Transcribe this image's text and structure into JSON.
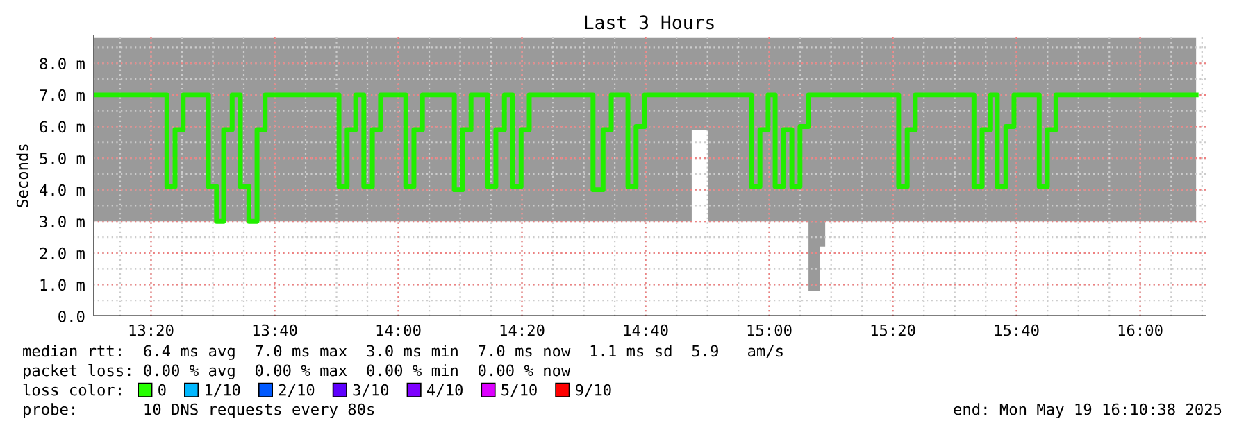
{
  "chart_data": {
    "type": "step",
    "title": "Last 3 Hours",
    "ylabel": "Seconds",
    "x": [
      13.177,
      13.376,
      13.398,
      13.42,
      13.488,
      13.51,
      13.529,
      13.552,
      13.574,
      13.597,
      13.619,
      13.641,
      13.84,
      13.862,
      13.885,
      13.907,
      13.93,
      13.952,
      14.02,
      14.042,
      14.065,
      14.151,
      14.173,
      14.196,
      14.241,
      14.263,
      14.286,
      14.308,
      14.331,
      14.353,
      14.525,
      14.552,
      14.574,
      14.619,
      14.641,
      14.664,
      14.791,
      14.836,
      14.952,
      14.975,
      14.997,
      15.016,
      15.038,
      15.061,
      15.083,
      15.106,
      15.136,
      15.151,
      15.349,
      15.372,
      15.394,
      15.552,
      15.574,
      15.597,
      15.615,
      15.638,
      15.66,
      15.728,
      15.75,
      15.773,
      16.151
    ],
    "series": [
      {
        "color": "#22ee00",
        "values": [
          7.0,
          4.1,
          5.9,
          7.0,
          4.1,
          3.0,
          5.9,
          7.0,
          4.1,
          3.0,
          5.9,
          7.0,
          4.1,
          5.9,
          7.0,
          4.1,
          5.9,
          7.0,
          4.1,
          5.9,
          7.0,
          4.0,
          5.9,
          7.0,
          4.1,
          5.9,
          7.0,
          4.1,
          5.9,
          7.0,
          4.0,
          5.9,
          7.0,
          4.1,
          6.0,
          7.0,
          7.0,
          7.0,
          4.1,
          5.9,
          7.0,
          4.1,
          5.9,
          4.1,
          6.0,
          7.0,
          7.0,
          7.0,
          4.1,
          5.9,
          7.0,
          4.1,
          5.9,
          7.0,
          4.1,
          6.0,
          7.0,
          4.1,
          5.9,
          7.0,
          7.0
        ],
        "lower": [
          3.0,
          3.0,
          3.0,
          3.0,
          3.0,
          3.0,
          3.0,
          3.0,
          3.0,
          3.0,
          3.0,
          3.0,
          3.0,
          3.0,
          3.0,
          3.0,
          3.0,
          3.0,
          3.0,
          3.0,
          3.0,
          3.0,
          3.0,
          3.0,
          3.0,
          3.0,
          3.0,
          3.0,
          3.0,
          3.0,
          3.0,
          3.0,
          3.0,
          3.0,
          3.0,
          3.0,
          5.9,
          3.0,
          3.0,
          3.0,
          3.0,
          3.0,
          3.0,
          3.0,
          3.0,
          0.8,
          2.2,
          3.0,
          3.0,
          3.0,
          3.0,
          3.0,
          3.0,
          3.0,
          3.0,
          3.0,
          3.0,
          3.0,
          3.0,
          3.0,
          3.0
        ],
        "upper": [
          8.8,
          8.8,
          8.8,
          8.8,
          8.8,
          8.8,
          8.8,
          8.8,
          8.8,
          8.8,
          8.8,
          8.8,
          8.8,
          8.8,
          8.8,
          8.8,
          8.8,
          8.8,
          8.8,
          8.8,
          8.8,
          8.8,
          8.8,
          8.8,
          8.8,
          8.8,
          8.8,
          8.8,
          8.8,
          8.8,
          8.8,
          8.8,
          8.8,
          8.8,
          8.8,
          8.8,
          8.8,
          8.8,
          8.8,
          8.8,
          8.8,
          8.8,
          8.8,
          8.8,
          8.8,
          8.8,
          8.8,
          8.8,
          8.8,
          8.8,
          8.8,
          8.8,
          8.8,
          8.8,
          8.8,
          8.8,
          8.8,
          8.8,
          8.8,
          8.8,
          8.8
        ]
      },
      {
        "name": "0",
        "color": "#26ff00",
        "values": [
          null,
          null,
          null,
          null,
          null,
          null,
          null,
          null,
          null,
          null,
          null,
          null,
          null,
          null,
          null,
          null,
          null,
          null,
          null,
          null,
          null,
          null,
          null,
          null,
          null,
          null,
          null,
          null,
          null,
          null,
          null,
          null,
          null,
          null,
          null,
          null,
          null,
          null,
          null,
          null,
          null,
          null,
          null,
          null,
          null,
          null,
          null,
          null,
          null,
          null,
          null,
          null,
          null,
          null,
          null,
          null,
          null,
          null,
          null,
          null,
          null
        ]
      },
      {
        "name": "1/10",
        "color": "#00b8ff",
        "values": [
          null,
          null,
          null,
          null,
          null,
          null,
          null,
          null,
          null,
          null,
          null,
          null,
          null,
          null,
          null,
          null,
          null,
          null,
          null,
          null,
          null,
          null,
          null,
          null,
          null,
          null,
          null,
          null,
          null,
          null,
          null,
          null,
          null,
          null,
          null,
          null,
          null,
          null,
          null,
          null,
          null,
          null,
          null,
          null,
          null,
          null,
          null,
          null,
          null,
          null,
          null,
          null,
          null,
          null,
          null,
          null,
          null,
          null,
          null,
          null,
          null
        ]
      },
      {
        "name": "2/10",
        "color": "#0059ff",
        "values": [
          null,
          null,
          null,
          null,
          null,
          null,
          null,
          null,
          null,
          null,
          null,
          null,
          null,
          null,
          null,
          null,
          null,
          null,
          null,
          null,
          null,
          null,
          null,
          null,
          null,
          null,
          null,
          null,
          null,
          null,
          null,
          null,
          null,
          null,
          null,
          null,
          null,
          null,
          null,
          null,
          null,
          null,
          null,
          null,
          null,
          null,
          null,
          null,
          null,
          null,
          null,
          null,
          null,
          null,
          null,
          null,
          null,
          null,
          null,
          null,
          null
        ]
      },
      {
        "name": "3/10",
        "color": "#5e00ff",
        "values": [
          null,
          null,
          null,
          null,
          null,
          null,
          null,
          null,
          null,
          null,
          null,
          null,
          null,
          null,
          null,
          null,
          null,
          null,
          null,
          null,
          null,
          null,
          null,
          null,
          null,
          null,
          null,
          null,
          null,
          null,
          null,
          null,
          null,
          null,
          null,
          null,
          null,
          null,
          null,
          null,
          null,
          null,
          null,
          null,
          null,
          null,
          null,
          null,
          null,
          null,
          null,
          null,
          null,
          null,
          null,
          null,
          null,
          null,
          null,
          null,
          null
        ]
      },
      {
        "name": "4/10",
        "color": "#7e00ff",
        "values": [
          null,
          null,
          null,
          null,
          null,
          null,
          null,
          null,
          null,
          null,
          null,
          null,
          null,
          null,
          null,
          null,
          null,
          null,
          null,
          null,
          null,
          null,
          null,
          null,
          null,
          null,
          null,
          null,
          null,
          null,
          null,
          null,
          null,
          null,
          null,
          null,
          null,
          null,
          null,
          null,
          null,
          null,
          null,
          null,
          null,
          null,
          null,
          null,
          null,
          null,
          null,
          null,
          null,
          null,
          null,
          null,
          null,
          null,
          null,
          null,
          null
        ]
      },
      {
        "name": "5/10",
        "color": "#dd00ff",
        "values": [
          null,
          null,
          null,
          null,
          null,
          null,
          null,
          null,
          null,
          null,
          null,
          null,
          null,
          null,
          null,
          null,
          null,
          null,
          null,
          null,
          null,
          null,
          null,
          null,
          null,
          null,
          null,
          null,
          null,
          null,
          null,
          null,
          null,
          null,
          null,
          null,
          null,
          null,
          null,
          null,
          null,
          null,
          null,
          null,
          null,
          null,
          null,
          null,
          null,
          null,
          null,
          null,
          null,
          null,
          null,
          null,
          null,
          null,
          null,
          null,
          null
        ]
      },
      {
        "name": "9/10",
        "color": "#ff0000",
        "values": [
          null,
          null,
          null,
          null,
          null,
          null,
          null,
          null,
          null,
          null,
          null,
          null,
          null,
          null,
          null,
          null,
          null,
          null,
          null,
          null,
          null,
          null,
          null,
          null,
          null,
          null,
          null,
          null,
          null,
          null,
          null,
          null,
          null,
          null,
          null,
          null,
          null,
          null,
          null,
          null,
          null,
          null,
          null,
          null,
          null,
          null,
          null,
          null,
          null,
          null,
          null,
          null,
          null,
          null,
          null,
          null,
          null,
          null,
          null,
          null,
          null
        ]
      }
    ],
    "xlim": [
      13.177,
      16.177
    ],
    "xticks": [
      {
        "value": 13.3333,
        "label": "13:20"
      },
      {
        "value": 13.6667,
        "label": "13:40"
      },
      {
        "value": 14.0,
        "label": "14:00"
      },
      {
        "value": 14.3333,
        "label": "14:20"
      },
      {
        "value": 14.6667,
        "label": "14:40"
      },
      {
        "value": 15.0,
        "label": "15:00"
      },
      {
        "value": 15.3333,
        "label": "15:20"
      },
      {
        "value": 15.6667,
        "label": "15:40"
      },
      {
        "value": 16.0,
        "label": "16:00"
      }
    ],
    "ylim": [
      0,
      8.9
    ],
    "yticks": [
      {
        "value": 0,
        "label": "0.0"
      },
      {
        "value": 1,
        "label": "1.0 m"
      },
      {
        "value": 2,
        "label": "2.0 m"
      },
      {
        "value": 3,
        "label": "3.0 m"
      },
      {
        "value": 4,
        "label": "4.0 m"
      },
      {
        "value": 5,
        "label": "5.0 m"
      },
      {
        "value": 6,
        "label": "6.0 m"
      },
      {
        "value": 7,
        "label": "7.0 m"
      },
      {
        "value": 8,
        "label": "8.0 m"
      }
    ],
    "grid": true,
    "legend": "bottom",
    "annotations": [
      "median rtt:  6.4 ms avg  7.0 ms max  3.0 ms min  7.0 ms now  1.1 ms sd  5.9   am/s",
      "packet loss: 0.00 % avg  0.00 % max  0.00 % min  0.00 % now",
      "loss color:",
      "probe:       10 DNS requests every 80s",
      "end: Mon May 19 16:10:38 2025"
    ]
  }
}
